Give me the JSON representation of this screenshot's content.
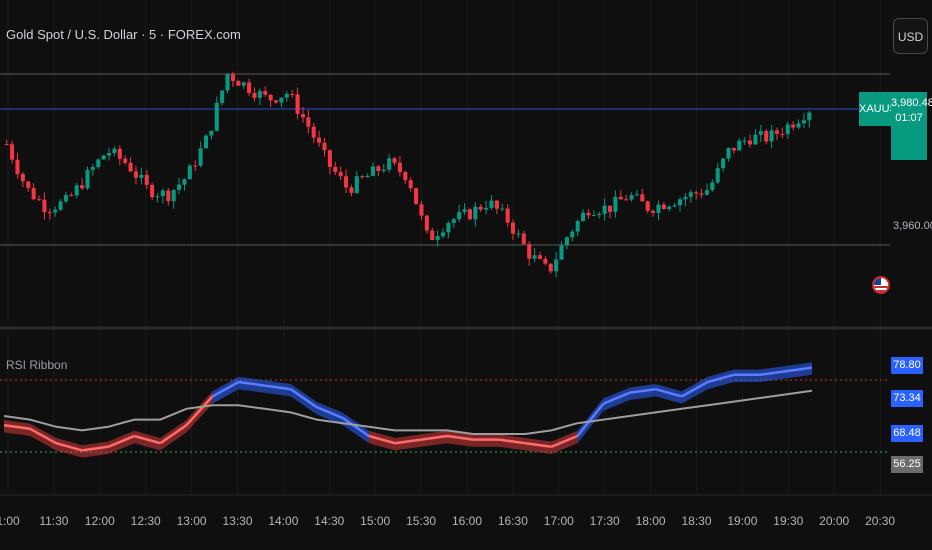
{
  "header": {
    "symbol_title": "Gold Spot / U.S. Dollar · 5 · FOREX.com",
    "currency_button": "USD"
  },
  "price_axis": {
    "last_price": "3,980.48",
    "countdown": "01:07",
    "symbol_tag": "XAUUSD",
    "tick_label": "3,960.00"
  },
  "indicator": {
    "title": "RSI Ribbon",
    "labels": [
      "78.80",
      "73.34",
      "68.48",
      "56.25"
    ]
  },
  "time_axis": [
    "1:00",
    "11:30",
    "12:00",
    "12:30",
    "13:00",
    "13:30",
    "14:00",
    "14:30",
    "15:00",
    "15:30",
    "16:00",
    "16:30",
    "17:00",
    "17:30",
    "18:00",
    "18:30",
    "19:00",
    "19:30",
    "20:00",
    "20:30"
  ],
  "colors": {
    "up": "#089981",
    "down": "#f23645",
    "rsi_up": "#2962ff",
    "rsi_down": "#d63a3a",
    "signal": "#9e9e9e"
  },
  "chart_data": [
    {
      "type": "candlestick",
      "xlabels": [
        "1:00",
        "11:30",
        "12:00",
        "12:30",
        "13:00",
        "13:30",
        "14:00",
        "14:30",
        "15:00",
        "15:30",
        "16:00",
        "16:30",
        "17:00",
        "17:30",
        "18:00",
        "18:30",
        "19:00",
        "19:30",
        "20:00",
        "20:30"
      ],
      "close_path": [
        3975,
        3968,
        3965,
        3966,
        3970,
        3974,
        3972,
        3968,
        3967,
        3970,
        3976,
        3986,
        3984,
        3982,
        3983,
        3978,
        3972,
        3968,
        3970,
        3972,
        3970,
        3960,
        3963,
        3964,
        3966,
        3963,
        3958,
        3955,
        3961,
        3965,
        3965,
        3967,
        3965,
        3966,
        3967,
        3968,
        3974,
        3976,
        3976,
        3978,
        3980.48
      ],
      "last_price": 3980.48,
      "reference_level": 3960.0
    },
    {
      "type": "line",
      "title": "RSI Ribbon",
      "series": [
        {
          "values": [
            58,
            57,
            53,
            51,
            52,
            55,
            53,
            58,
            66,
            70,
            69,
            68,
            63,
            60,
            55,
            53,
            54,
            55,
            54,
            54,
            53,
            52,
            55,
            64,
            67,
            68,
            66,
            70,
            72,
            72,
            73,
            74
          ]
        },
        {
          "values": [
            60,
            59,
            57,
            56,
            57,
            59,
            59,
            62,
            63,
            63,
            62,
            61,
            59,
            58,
            57,
            56,
            56,
            56,
            55,
            55,
            55,
            56,
            58,
            59,
            60,
            61,
            62,
            63,
            64,
            65,
            66,
            67
          ]
        }
      ],
      "levels": [
        70,
        30
      ],
      "axis_labels": [
        78.8,
        73.34,
        68.48,
        56.25
      ]
    }
  ]
}
